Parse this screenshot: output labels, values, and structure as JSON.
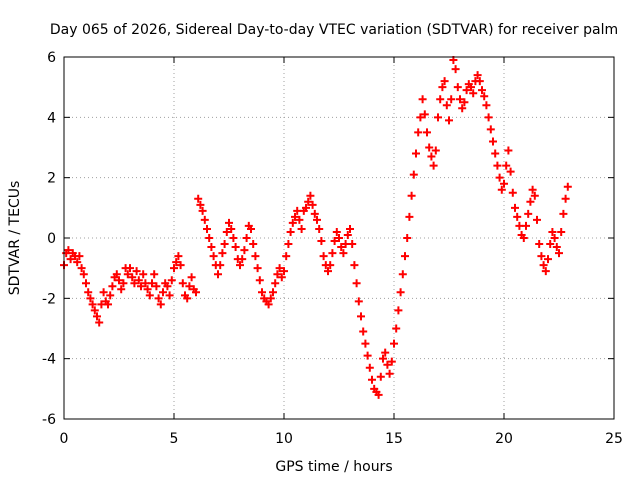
{
  "chart_data": {
    "type": "scatter",
    "title": "Day 065 of 2026, Sidereal Day-to-day VTEC variation (SDTVAR) for receiver palm",
    "xlabel": "GPS time / hours",
    "ylabel": "SDTVAR / TECUs",
    "xlim": [
      0,
      25
    ],
    "ylim": [
      -6,
      6
    ],
    "xticks": [
      0,
      5,
      10,
      15,
      20,
      25
    ],
    "yticks": [
      -6,
      -4,
      -2,
      0,
      2,
      4,
      6
    ],
    "grid": true,
    "marker": "+",
    "color": "#ff0000",
    "series": [
      {
        "name": "palm",
        "points": [
          [
            0.0,
            -0.9
          ],
          [
            0.1,
            -0.5
          ],
          [
            0.2,
            -0.4
          ],
          [
            0.3,
            -0.7
          ],
          [
            0.4,
            -0.5
          ],
          [
            0.5,
            -0.6
          ],
          [
            0.6,
            -0.8
          ],
          [
            0.7,
            -0.6
          ],
          [
            0.8,
            -1.0
          ],
          [
            0.9,
            -1.2
          ],
          [
            1.0,
            -1.5
          ],
          [
            1.1,
            -1.8
          ],
          [
            1.2,
            -2.0
          ],
          [
            1.3,
            -2.2
          ],
          [
            1.4,
            -2.4
          ],
          [
            1.5,
            -2.6
          ],
          [
            1.6,
            -2.8
          ],
          [
            1.7,
            -2.2
          ],
          [
            1.8,
            -1.8
          ],
          [
            1.9,
            -2.1
          ],
          [
            2.0,
            -2.2
          ],
          [
            2.1,
            -1.9
          ],
          [
            2.2,
            -1.6
          ],
          [
            2.3,
            -1.3
          ],
          [
            2.4,
            -1.2
          ],
          [
            2.5,
            -1.4
          ],
          [
            2.6,
            -1.7
          ],
          [
            2.7,
            -1.5
          ],
          [
            2.8,
            -1.0
          ],
          [
            2.9,
            -1.2
          ],
          [
            3.0,
            -1.0
          ],
          [
            3.1,
            -1.3
          ],
          [
            3.2,
            -1.5
          ],
          [
            3.3,
            -1.1
          ],
          [
            3.4,
            -1.4
          ],
          [
            3.5,
            -1.6
          ],
          [
            3.6,
            -1.2
          ],
          [
            3.7,
            -1.5
          ],
          [
            3.8,
            -1.7
          ],
          [
            3.9,
            -1.9
          ],
          [
            4.0,
            -1.5
          ],
          [
            4.1,
            -1.2
          ],
          [
            4.2,
            -1.6
          ],
          [
            4.3,
            -2.0
          ],
          [
            4.4,
            -2.2
          ],
          [
            4.5,
            -1.8
          ],
          [
            4.6,
            -1.5
          ],
          [
            4.7,
            -1.6
          ],
          [
            4.8,
            -1.9
          ],
          [
            4.9,
            -1.4
          ],
          [
            5.0,
            -1.0
          ],
          [
            5.1,
            -0.8
          ],
          [
            5.2,
            -0.6
          ],
          [
            5.3,
            -0.9
          ],
          [
            5.4,
            -1.5
          ],
          [
            5.5,
            -1.9
          ],
          [
            5.6,
            -2.0
          ],
          [
            5.7,
            -1.6
          ],
          [
            5.8,
            -1.3
          ],
          [
            5.9,
            -1.7
          ],
          [
            6.0,
            -1.8
          ],
          [
            6.1,
            1.3
          ],
          [
            6.2,
            1.1
          ],
          [
            6.3,
            0.9
          ],
          [
            6.4,
            0.6
          ],
          [
            6.5,
            0.3
          ],
          [
            6.6,
            0.0
          ],
          [
            6.7,
            -0.3
          ],
          [
            6.8,
            -0.6
          ],
          [
            6.9,
            -0.9
          ],
          [
            7.0,
            -1.2
          ],
          [
            7.1,
            -0.9
          ],
          [
            7.2,
            -0.5
          ],
          [
            7.3,
            -0.2
          ],
          [
            7.4,
            0.2
          ],
          [
            7.5,
            0.5
          ],
          [
            7.6,
            0.3
          ],
          [
            7.7,
            0.0
          ],
          [
            7.8,
            -0.3
          ],
          [
            7.9,
            -0.7
          ],
          [
            8.0,
            -0.9
          ],
          [
            8.1,
            -0.7
          ],
          [
            8.2,
            -0.4
          ],
          [
            8.3,
            0.0
          ],
          [
            8.4,
            0.4
          ],
          [
            8.5,
            0.3
          ],
          [
            8.6,
            -0.2
          ],
          [
            8.7,
            -0.6
          ],
          [
            8.8,
            -1.0
          ],
          [
            8.9,
            -1.4
          ],
          [
            9.0,
            -1.8
          ],
          [
            9.1,
            -2.0
          ],
          [
            9.2,
            -2.1
          ],
          [
            9.3,
            -2.2
          ],
          [
            9.4,
            -2.0
          ],
          [
            9.5,
            -1.8
          ],
          [
            9.6,
            -1.5
          ],
          [
            9.7,
            -1.2
          ],
          [
            9.8,
            -1.0
          ],
          [
            9.9,
            -1.3
          ],
          [
            10.0,
            -1.1
          ],
          [
            10.1,
            -0.6
          ],
          [
            10.2,
            -0.2
          ],
          [
            10.3,
            0.2
          ],
          [
            10.4,
            0.5
          ],
          [
            10.5,
            0.7
          ],
          [
            10.6,
            0.9
          ],
          [
            10.7,
            0.6
          ],
          [
            10.8,
            0.3
          ],
          [
            10.9,
            0.9
          ],
          [
            11.0,
            1.0
          ],
          [
            11.1,
            1.2
          ],
          [
            11.2,
            1.4
          ],
          [
            11.3,
            1.1
          ],
          [
            11.4,
            0.8
          ],
          [
            11.5,
            0.6
          ],
          [
            11.6,
            0.3
          ],
          [
            11.7,
            -0.1
          ],
          [
            11.8,
            -0.6
          ],
          [
            11.9,
            -0.9
          ],
          [
            12.0,
            -1.1
          ],
          [
            12.1,
            -0.9
          ],
          [
            12.2,
            -0.5
          ],
          [
            12.3,
            -0.1
          ],
          [
            12.4,
            0.2
          ],
          [
            12.5,
            0.0
          ],
          [
            12.6,
            -0.3
          ],
          [
            12.7,
            -0.5
          ],
          [
            12.8,
            -0.2
          ],
          [
            12.9,
            0.1
          ],
          [
            13.0,
            0.3
          ],
          [
            13.1,
            -0.2
          ],
          [
            13.2,
            -0.9
          ],
          [
            13.3,
            -1.5
          ],
          [
            13.4,
            -2.1
          ],
          [
            13.5,
            -2.6
          ],
          [
            13.6,
            -3.1
          ],
          [
            13.7,
            -3.5
          ],
          [
            13.8,
            -3.9
          ],
          [
            13.9,
            -4.3
          ],
          [
            14.0,
            -4.7
          ],
          [
            14.1,
            -5.0
          ],
          [
            14.2,
            -5.1
          ],
          [
            14.3,
            -5.2
          ],
          [
            14.4,
            -4.6
          ],
          [
            14.5,
            -4.0
          ],
          [
            14.6,
            -3.8
          ],
          [
            14.7,
            -4.2
          ],
          [
            14.8,
            -4.5
          ],
          [
            14.9,
            -4.1
          ],
          [
            15.0,
            -3.5
          ],
          [
            15.1,
            -3.0
          ],
          [
            15.2,
            -2.4
          ],
          [
            15.3,
            -1.8
          ],
          [
            15.4,
            -1.2
          ],
          [
            15.5,
            -0.6
          ],
          [
            15.6,
            0.0
          ],
          [
            15.7,
            0.7
          ],
          [
            15.8,
            1.4
          ],
          [
            15.9,
            2.1
          ],
          [
            16.0,
            2.8
          ],
          [
            16.1,
            3.5
          ],
          [
            16.2,
            4.0
          ],
          [
            16.3,
            4.6
          ],
          [
            16.4,
            4.1
          ],
          [
            16.5,
            3.5
          ],
          [
            16.6,
            3.0
          ],
          [
            16.7,
            2.7
          ],
          [
            16.8,
            2.4
          ],
          [
            16.9,
            2.9
          ],
          [
            17.0,
            4.0
          ],
          [
            17.1,
            4.6
          ],
          [
            17.2,
            5.0
          ],
          [
            17.3,
            5.2
          ],
          [
            17.4,
            4.4
          ],
          [
            17.5,
            3.9
          ],
          [
            17.6,
            4.6
          ],
          [
            17.7,
            5.9
          ],
          [
            17.8,
            5.6
          ],
          [
            17.9,
            5.0
          ],
          [
            18.0,
            4.6
          ],
          [
            18.1,
            4.3
          ],
          [
            18.2,
            4.5
          ],
          [
            18.3,
            4.9
          ],
          [
            18.4,
            5.1
          ],
          [
            18.5,
            5.0
          ],
          [
            18.6,
            4.8
          ],
          [
            18.7,
            5.2
          ],
          [
            18.8,
            5.4
          ],
          [
            18.9,
            5.2
          ],
          [
            19.0,
            4.9
          ],
          [
            19.1,
            4.7
          ],
          [
            19.2,
            4.4
          ],
          [
            19.3,
            4.0
          ],
          [
            19.4,
            3.6
          ],
          [
            19.5,
            3.2
          ],
          [
            19.6,
            2.8
          ],
          [
            19.7,
            2.4
          ],
          [
            19.8,
            2.0
          ],
          [
            19.9,
            1.6
          ],
          [
            20.0,
            1.8
          ],
          [
            20.1,
            2.4
          ],
          [
            20.2,
            2.9
          ],
          [
            20.3,
            2.2
          ],
          [
            20.4,
            1.5
          ],
          [
            20.5,
            1.0
          ],
          [
            20.6,
            0.7
          ],
          [
            20.7,
            0.4
          ],
          [
            20.8,
            0.1
          ],
          [
            20.9,
            0.0
          ],
          [
            21.0,
            0.4
          ],
          [
            21.1,
            0.8
          ],
          [
            21.2,
            1.2
          ],
          [
            21.3,
            1.6
          ],
          [
            21.4,
            1.4
          ],
          [
            21.5,
            0.6
          ],
          [
            21.6,
            -0.2
          ],
          [
            21.7,
            -0.6
          ],
          [
            21.8,
            -0.9
          ],
          [
            21.9,
            -1.1
          ],
          [
            22.0,
            -0.7
          ],
          [
            22.1,
            -0.2
          ],
          [
            22.2,
            0.2
          ],
          [
            22.3,
            0.0
          ],
          [
            22.4,
            -0.3
          ],
          [
            22.5,
            -0.5
          ],
          [
            22.6,
            0.2
          ],
          [
            22.7,
            0.8
          ],
          [
            22.8,
            1.3
          ],
          [
            22.9,
            1.7
          ]
        ]
      }
    ]
  }
}
